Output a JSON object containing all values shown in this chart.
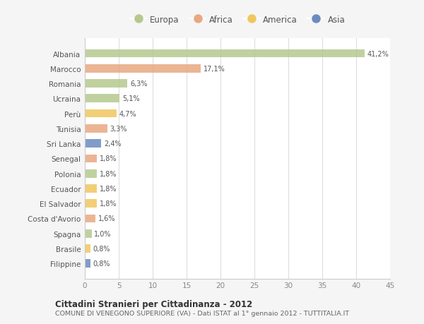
{
  "countries": [
    "Albania",
    "Marocco",
    "Romania",
    "Ucraina",
    "Perù",
    "Tunisia",
    "Sri Lanka",
    "Senegal",
    "Polonia",
    "Ecuador",
    "El Salvador",
    "Costa d'Avorio",
    "Spagna",
    "Brasile",
    "Filippine"
  ],
  "values": [
    41.2,
    17.1,
    6.3,
    5.1,
    4.7,
    3.3,
    2.4,
    1.8,
    1.8,
    1.8,
    1.8,
    1.6,
    1.0,
    0.8,
    0.8
  ],
  "labels": [
    "41,2%",
    "17,1%",
    "6,3%",
    "5,1%",
    "4,7%",
    "3,3%",
    "2,4%",
    "1,8%",
    "1,8%",
    "1,8%",
    "1,8%",
    "1,6%",
    "1,0%",
    "0,8%",
    "0,8%"
  ],
  "continents": [
    "Europa",
    "Africa",
    "Europa",
    "Europa",
    "America",
    "Africa",
    "Asia",
    "Africa",
    "Europa",
    "America",
    "America",
    "Africa",
    "Europa",
    "America",
    "Asia"
  ],
  "colors": {
    "Europa": "#b5c98e",
    "Africa": "#e8a882",
    "America": "#f0c75e",
    "Asia": "#6b8bbf"
  },
  "legend_order": [
    "Europa",
    "Africa",
    "America",
    "Asia"
  ],
  "xlim": [
    0,
    45
  ],
  "xticks": [
    0,
    5,
    10,
    15,
    20,
    25,
    30,
    35,
    40,
    45
  ],
  "title1": "Cittadini Stranieri per Cittadinanza - 2012",
  "title2": "COMUNE DI VENEGONO SUPERIORE (VA) - Dati ISTAT al 1° gennaio 2012 - TUTTITALIA.IT",
  "bg_color": "#f5f5f5",
  "plot_bg_color": "#ffffff",
  "grid_color": "#dddddd",
  "border_color": "#cccccc"
}
